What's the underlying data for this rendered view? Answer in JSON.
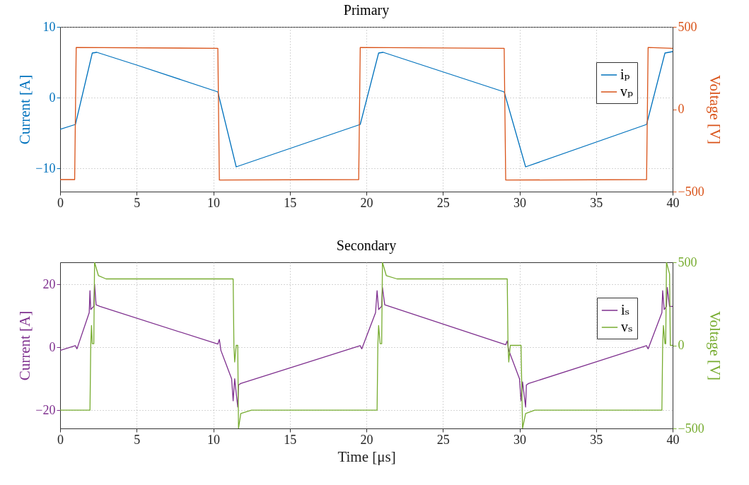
{
  "chart_data": [
    {
      "type": "line",
      "title": "Primary",
      "ylabel": "Current [A]",
      "y2label": "Voltage [V]",
      "xlim": [
        0,
        40
      ],
      "xticks": [
        0,
        5,
        10,
        15,
        20,
        25,
        30,
        35,
        40
      ],
      "ylim": [
        -13.3,
        10
      ],
      "yticks": [
        -10,
        0,
        10
      ],
      "y2lim": [
        -500,
        500
      ],
      "y2ticks": [
        -500,
        0,
        500
      ],
      "grid": true,
      "legend": "top right",
      "series": [
        {
          "name": "iₚ",
          "color": "#0072bd",
          "x": [
            0,
            1.0,
            2.1,
            2.4,
            5,
            10.3,
            11.5,
            19.6,
            20.8,
            21.1,
            29.0,
            30.4,
            38.3,
            39.5,
            40
          ],
          "values": [
            -4.5,
            -3.8,
            6.3,
            6.4,
            4.6,
            0.8,
            -9.8,
            -3.8,
            6.3,
            6.4,
            0.8,
            -9.8,
            -3.8,
            6.3,
            6.5
          ]
        },
        {
          "name": "vₚ",
          "color": "#d95319",
          "axis": "y2",
          "x": [
            0,
            0.95,
            1.05,
            10.3,
            10.4,
            19.5,
            19.6,
            29.0,
            29.1,
            38.3,
            38.4,
            40
          ],
          "values": [
            -427,
            -427,
            375,
            370,
            -430,
            -427,
            375,
            370,
            -430,
            -427,
            375,
            370
          ]
        }
      ]
    },
    {
      "type": "line",
      "title": "Secondary",
      "xlabel": "Time [μs]",
      "ylabel": "Current [A]",
      "y2label": "Voltage [V]",
      "xlim": [
        0,
        40
      ],
      "xticks": [
        0,
        5,
        10,
        15,
        20,
        25,
        30,
        35,
        40
      ],
      "ylim": [
        -25.8,
        27
      ],
      "yticks": [
        -20,
        0,
        20
      ],
      "y2lim": [
        -500,
        500
      ],
      "y2ticks": [
        -500,
        0,
        500
      ],
      "grid": true,
      "legend": "top right",
      "series": [
        {
          "name": "iₛ",
          "color": "#7e2f8e",
          "x": [
            0,
            1.0,
            1.1,
            1.9,
            1.95,
            2.0,
            2.2,
            2.25,
            2.35,
            2.6,
            10.3,
            10.4,
            10.5,
            11.2,
            11.3,
            11.4,
            11.6,
            11.65,
            11.8,
            19.6,
            19.7,
            20.6,
            20.7,
            20.8,
            21.0,
            21.05,
            21.2,
            29.1,
            29.2,
            29.3,
            30.0,
            30.1,
            30.2,
            30.4,
            30.45,
            30.6,
            38.3,
            38.4,
            39.3,
            39.35,
            39.45,
            39.6,
            39.65,
            39.8,
            40
          ],
          "values": [
            -1,
            0.5,
            -0.5,
            11,
            18,
            12,
            13,
            20,
            13.5,
            13,
            1,
            2.5,
            -1,
            -10,
            -17,
            -10,
            -19,
            -12,
            -11.5,
            0.5,
            -0.5,
            11,
            18,
            12,
            13,
            19,
            13.5,
            0.8,
            2,
            -1,
            -10,
            -17,
            -11,
            -19,
            -12,
            -11.5,
            0.5,
            -0.5,
            11,
            18,
            12,
            13,
            19,
            13,
            13
          ]
        },
        {
          "name": "vₛ",
          "color": "#77ac30",
          "axis": "y2",
          "x": [
            0,
            1.95,
            2.0,
            2.05,
            2.1,
            2.2,
            2.25,
            2.5,
            3,
            11.3,
            11.35,
            11.4,
            11.5,
            11.6,
            11.65,
            11.8,
            12.5,
            20.7,
            20.75,
            20.8,
            20.9,
            21.0,
            21.05,
            21.3,
            22,
            29.2,
            29.25,
            29.3,
            29.4,
            30.1,
            30.2,
            30.4,
            31,
            39.3,
            39.35,
            39.4,
            39.5,
            39.55,
            39.6,
            39.8,
            39.85,
            40
          ],
          "values": [
            -390,
            -390,
            0,
            120,
            10,
            10,
            500,
            420,
            400,
            400,
            0,
            -100,
            0,
            0,
            -500,
            -410,
            -390,
            -390,
            0,
            120,
            10,
            10,
            500,
            420,
            400,
            400,
            0,
            -100,
            0,
            0,
            -500,
            -410,
            -390,
            -390,
            0,
            120,
            10,
            10,
            500,
            430,
            0,
            0
          ]
        }
      ]
    }
  ]
}
